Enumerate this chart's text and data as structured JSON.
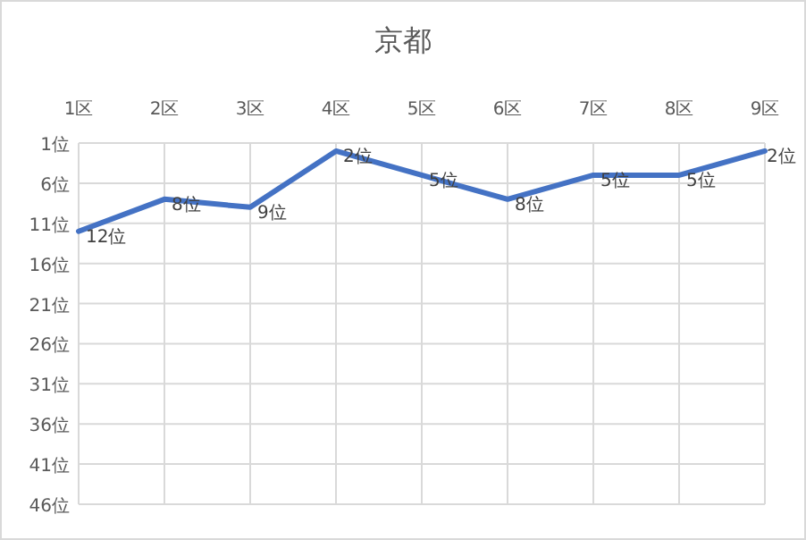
{
  "chart_data": {
    "type": "line",
    "title": "京都",
    "categories": [
      "1区",
      "2区",
      "3区",
      "4区",
      "5区",
      "6区",
      "7区",
      "8区",
      "9区"
    ],
    "series": [
      {
        "color": "#4472c4",
        "values": [
          12,
          8,
          9,
          2,
          5,
          8,
          5,
          5,
          2
        ],
        "value_labels": [
          "12位",
          "8位",
          "9位",
          "2位",
          "5位",
          "8位",
          "5位",
          "5位",
          "2位"
        ]
      }
    ],
    "ylim": [
      46,
      1
    ],
    "yticks": [
      {
        "value": 1,
        "label": "1位"
      },
      {
        "value": 6,
        "label": "6位"
      },
      {
        "value": 11,
        "label": "11位"
      },
      {
        "value": 16,
        "label": "16位"
      },
      {
        "value": 21,
        "label": "21位"
      },
      {
        "value": 26,
        "label": "26位"
      },
      {
        "value": 31,
        "label": "31位"
      },
      {
        "value": 36,
        "label": "36位"
      },
      {
        "value": 41,
        "label": "41位"
      },
      {
        "value": 46,
        "label": "46位"
      }
    ],
    "grid": true
  }
}
